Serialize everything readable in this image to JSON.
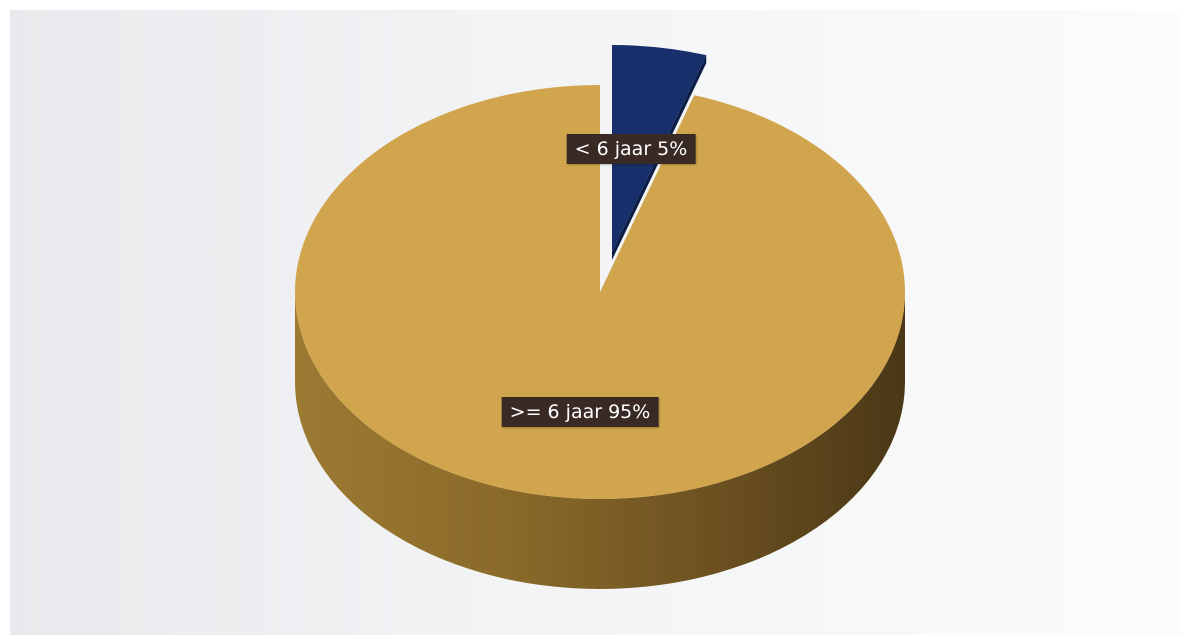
{
  "chart_data": {
    "type": "pie",
    "title": "",
    "categories": [
      "< 6 jaar",
      ">= 6 jaar"
    ],
    "values": [
      5,
      95
    ],
    "labels": [
      "< 6 jaar 5%",
      ">= 6 jaar 95%"
    ],
    "colors": [
      "#17306b",
      "#d1a54d"
    ],
    "style": "3d",
    "legend": "none"
  }
}
